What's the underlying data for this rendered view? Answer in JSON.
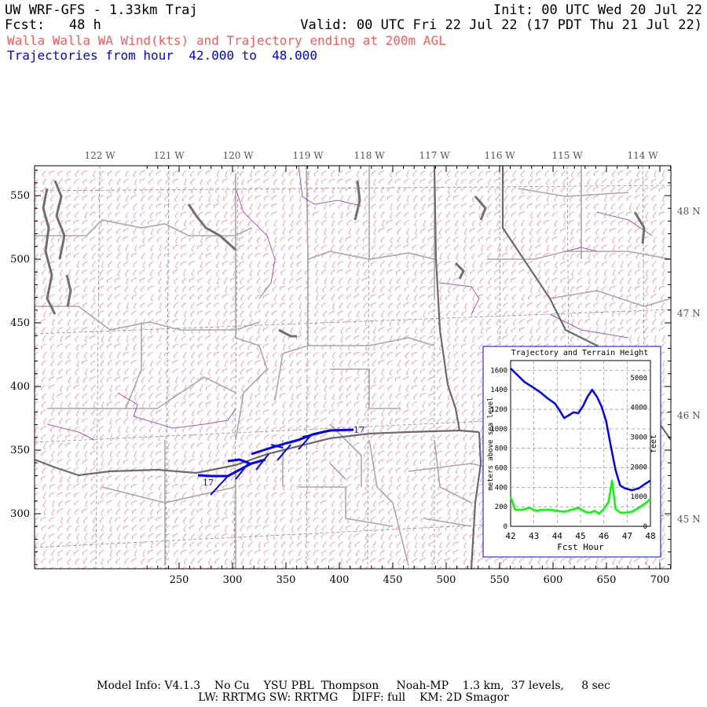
{
  "header": {
    "model_title": "UW WRF-GFS - 1.33km Traj",
    "init": "Init: 00 UTC Wed 20 Jul 22",
    "fcst_label": "Fcst:",
    "fcst_hours": "48 h",
    "valid": "Valid: 00 UTC Fri 22 Jul 22 (17 PDT Thu 21 Jul 22)",
    "product": "Walla Walla WA Wind(kts) and Trajectory ending at 200m AGL",
    "traj_range": "Trajectories from hour  42.000 to  48.000"
  },
  "map": {
    "lon_labels": [
      "122 W",
      "121 W",
      "120 W",
      "119 W",
      "118 W",
      "117 W",
      "116 W",
      "115 W",
      "114 W"
    ],
    "lat_labels": [
      "48 N",
      "47 N",
      "46 N",
      "45 N"
    ],
    "x_ticks": [
      "250",
      "300",
      "350",
      "400",
      "450",
      "500",
      "550",
      "600",
      "650",
      "700"
    ],
    "y_ticks": [
      "550",
      "500",
      "450",
      "400",
      "350",
      "300"
    ],
    "colors": {
      "barbs": "#ff7a85",
      "state_border": "#6b6b6b",
      "county": "#a8a8a8",
      "rivers": "#9a5fc0",
      "trajectory": "#0000ff",
      "coast": "#707070"
    },
    "trajectory_labels": [
      "17",
      "17"
    ]
  },
  "inset": {
    "title": "Trajectory and Terrain Height",
    "xlabel": "Fcst Hour",
    "ylabel_left": "meters above sea level",
    "ylabel_right": "feet",
    "x_ticks": [
      "42",
      "43",
      "44",
      "45",
      "46",
      "47",
      "48"
    ],
    "y_left_ticks": [
      "1600",
      "1400",
      "1200",
      "1000",
      "800",
      "600",
      "400",
      "200",
      "0"
    ],
    "y_right_ticks": [
      "5000",
      "4000",
      "3000",
      "2000",
      "1000",
      "0"
    ]
  },
  "chart_data": {
    "type": "line",
    "title": "Trajectory and Terrain Height",
    "xlabel": "Fcst Hour",
    "ylabel": "meters above sea level",
    "xlim": [
      42,
      48
    ],
    "ylim": [
      0,
      1700
    ],
    "grid": true,
    "series": [
      {
        "color": "#0000ff",
        "x": [
          42.0,
          42.3,
          42.6,
          43.0,
          43.3,
          43.6,
          43.9,
          44.1,
          44.3,
          44.5,
          44.7,
          44.9,
          45.1,
          45.3,
          45.5,
          45.7,
          45.9,
          46.1,
          46.3,
          46.5,
          46.7,
          46.9,
          47.2,
          47.5,
          47.8,
          48.0
        ],
        "y": [
          1620,
          1550,
          1480,
          1420,
          1370,
          1310,
          1260,
          1190,
          1110,
          1140,
          1170,
          1160,
          1230,
          1330,
          1400,
          1330,
          1230,
          1080,
          820,
          580,
          420,
          390,
          370,
          390,
          440,
          470
        ]
      },
      {
        "color": "#00ff00",
        "x": [
          42.0,
          42.2,
          42.5,
          42.8,
          43.1,
          43.4,
          43.7,
          44.0,
          44.3,
          44.6,
          44.9,
          45.2,
          45.4,
          45.6,
          45.8,
          46.0,
          46.2,
          46.35,
          46.5,
          46.7,
          46.9,
          47.2,
          47.5,
          47.8,
          48.0
        ],
        "y": [
          300,
          170,
          170,
          190,
          160,
          170,
          170,
          160,
          150,
          170,
          190,
          150,
          140,
          160,
          130,
          180,
          250,
          470,
          180,
          140,
          140,
          150,
          190,
          240,
          280
        ]
      }
    ]
  },
  "footer": {
    "line1": "Model Info: V4.1.3    No Cu    YSU PBL  Thompson     Noah-MP    1.3 km,  37 levels,     8 sec",
    "line2": "LW: RRTMG SW: RRTMG    DIFF: full    KM: 2D Smagor"
  }
}
